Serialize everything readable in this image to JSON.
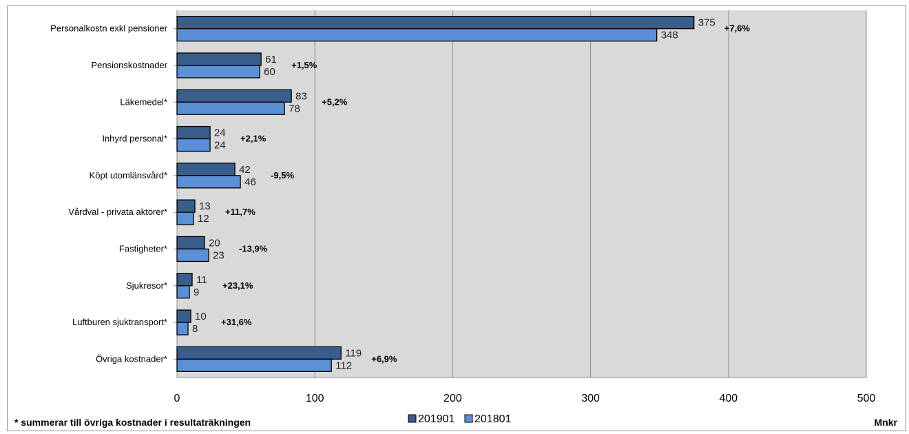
{
  "chart_data": {
    "type": "bar",
    "orientation": "horizontal",
    "title": "",
    "categories": [
      "Personalkostn exkl pensioner",
      "Pensionskostnader",
      "Läkemedel*",
      "Inhyrd personal*",
      "Köpt utomlänsvård*",
      "Vårdval - privata aktörer*",
      "Fastigheter*",
      "Sjukresor*",
      "Luftburen sjuktransport*",
      "Övriga kostnader*"
    ],
    "series": [
      {
        "name": "201901",
        "color": "#3a5e8c",
        "values": [
          375,
          61,
          83,
          24,
          42,
          13,
          20,
          11,
          10,
          119
        ]
      },
      {
        "name": "201801",
        "color": "#5b8fd6",
        "values": [
          348,
          60,
          78,
          24,
          46,
          12,
          23,
          9,
          8,
          112
        ]
      }
    ],
    "change_labels": [
      "+7,6%",
      "+1,5%",
      "+5,2%",
      "+2,1%",
      "-9,5%",
      "+11,7%",
      "-13,9%",
      "+23,1%",
      "+31,6%",
      "+6,9%"
    ],
    "xlim": [
      0,
      500
    ],
    "xticks": [
      0,
      100,
      200,
      300,
      400,
      500
    ],
    "grid": true,
    "plot_background": "#d9d9d9",
    "legend_placement": "bottom-center"
  },
  "footnote": "* summerar till övriga kostnader i resultaträkningen",
  "unit_label": "Mnkr"
}
